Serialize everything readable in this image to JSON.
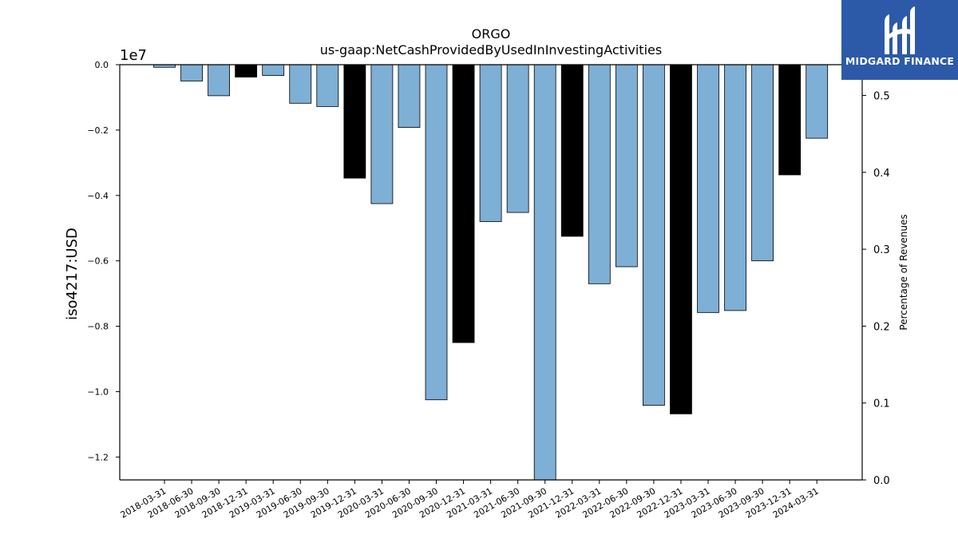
{
  "chart_data": {
    "type": "bar",
    "title": "ORGO",
    "subtitle": "us-gaap:NetCashProvidedByUsedInInvestingActivities",
    "ylabel": "iso4217:USD",
    "y_offset_label": "1e7",
    "y2label": "Percentage of Revenues",
    "ylim": [
      -12.7,
      0
    ],
    "y_unit_multiplier": 10000000,
    "y_ticks": [
      "0.0",
      "−0.2",
      "−0.4",
      "−0.6",
      "−0.8",
      "−1.0",
      "−1.2"
    ],
    "y2lim": [
      0.0,
      0.54
    ],
    "y2_ticks": [
      "0.0",
      "0.1",
      "0.2",
      "0.3",
      "0.4",
      "0.5"
    ],
    "grid": false,
    "categories": [
      "2018-03-31",
      "2018-06-30",
      "2018-09-30",
      "2018-12-31",
      "2019-03-31",
      "2019-06-30",
      "2019-09-30",
      "2019-12-31",
      "2020-03-31",
      "2020-06-30",
      "2020-09-30",
      "2020-12-31",
      "2021-03-31",
      "2021-06-30",
      "2021-09-30",
      "2021-12-31",
      "2022-03-31",
      "2022-06-30",
      "2022-09-30",
      "2022-12-31",
      "2023-03-31",
      "2023-06-30",
      "2023-09-30",
      "2023-12-31",
      "2024-03-31"
    ],
    "values": [
      -0.08,
      -0.5,
      -0.95,
      -0.38,
      -0.33,
      -1.18,
      -1.28,
      -3.47,
      -4.25,
      -1.92,
      -10.25,
      -8.5,
      -4.8,
      -4.52,
      -12.7,
      -5.25,
      -6.7,
      -6.18,
      -10.42,
      -10.68,
      -7.58,
      -7.52,
      -6.0,
      -3.37,
      -2.25
    ],
    "value_units": "1e6 USD",
    "bar_kind": [
      "quarter",
      "quarter",
      "quarter",
      "annual",
      "quarter",
      "quarter",
      "quarter",
      "annual",
      "quarter",
      "quarter",
      "quarter",
      "annual",
      "quarter",
      "quarter",
      "quarter",
      "annual",
      "quarter",
      "quarter",
      "quarter",
      "annual",
      "quarter",
      "quarter",
      "quarter",
      "annual",
      "quarter"
    ],
    "colors": {
      "quarter": "#7eafd4",
      "annual": "#000000",
      "edge": "#000000"
    }
  },
  "logo": {
    "text": "MIDGARD FINANCE",
    "background": "#2c5aa8"
  }
}
